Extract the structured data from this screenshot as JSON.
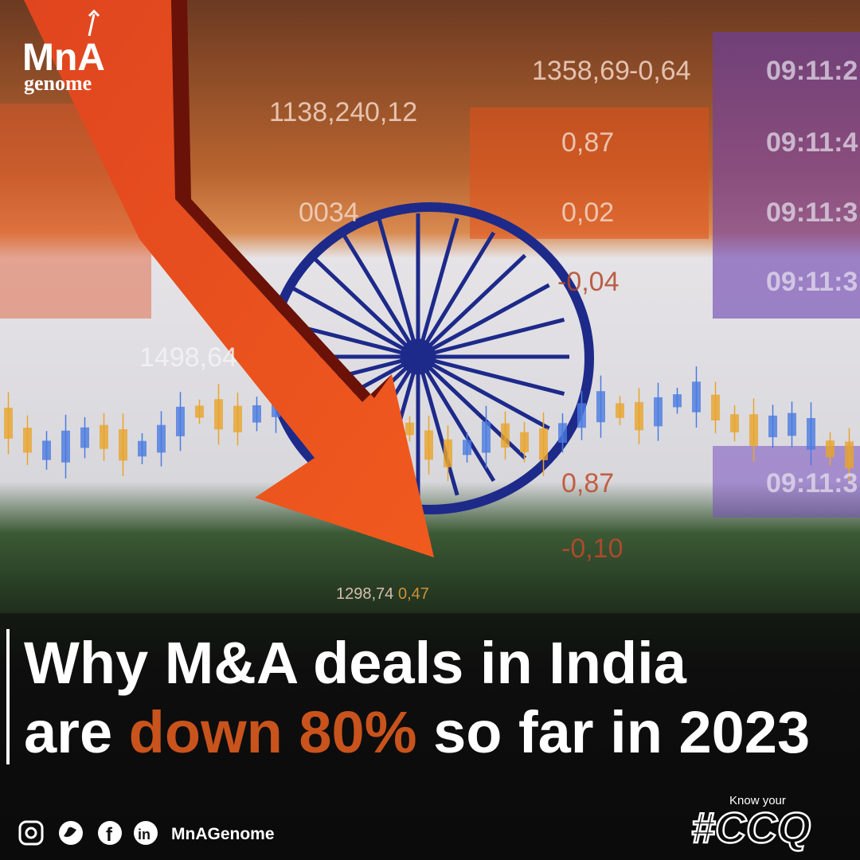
{
  "logo": {
    "text": "MnA",
    "sub": "genome"
  },
  "ticker": [
    "1358,69",
    "-0,64",
    "1138,24",
    "0,12",
    "0,87",
    "0,02",
    "0034",
    "-0,04",
    "1498,64",
    "0,87",
    "-0,10",
    "1298,74",
    "0,47",
    "09:11:2",
    "09:11:4",
    "09:11:3",
    "09:11:3",
    "09:11:3"
  ],
  "headline": {
    "line1": "Why M&A deals in India",
    "line2_start": "are",
    "highlight": "down 80%",
    "line2_end": "so far in 2023"
  },
  "footer": {
    "handle": "MnAGenome",
    "tagline": "Know your",
    "hashtag": "#CCQ"
  }
}
